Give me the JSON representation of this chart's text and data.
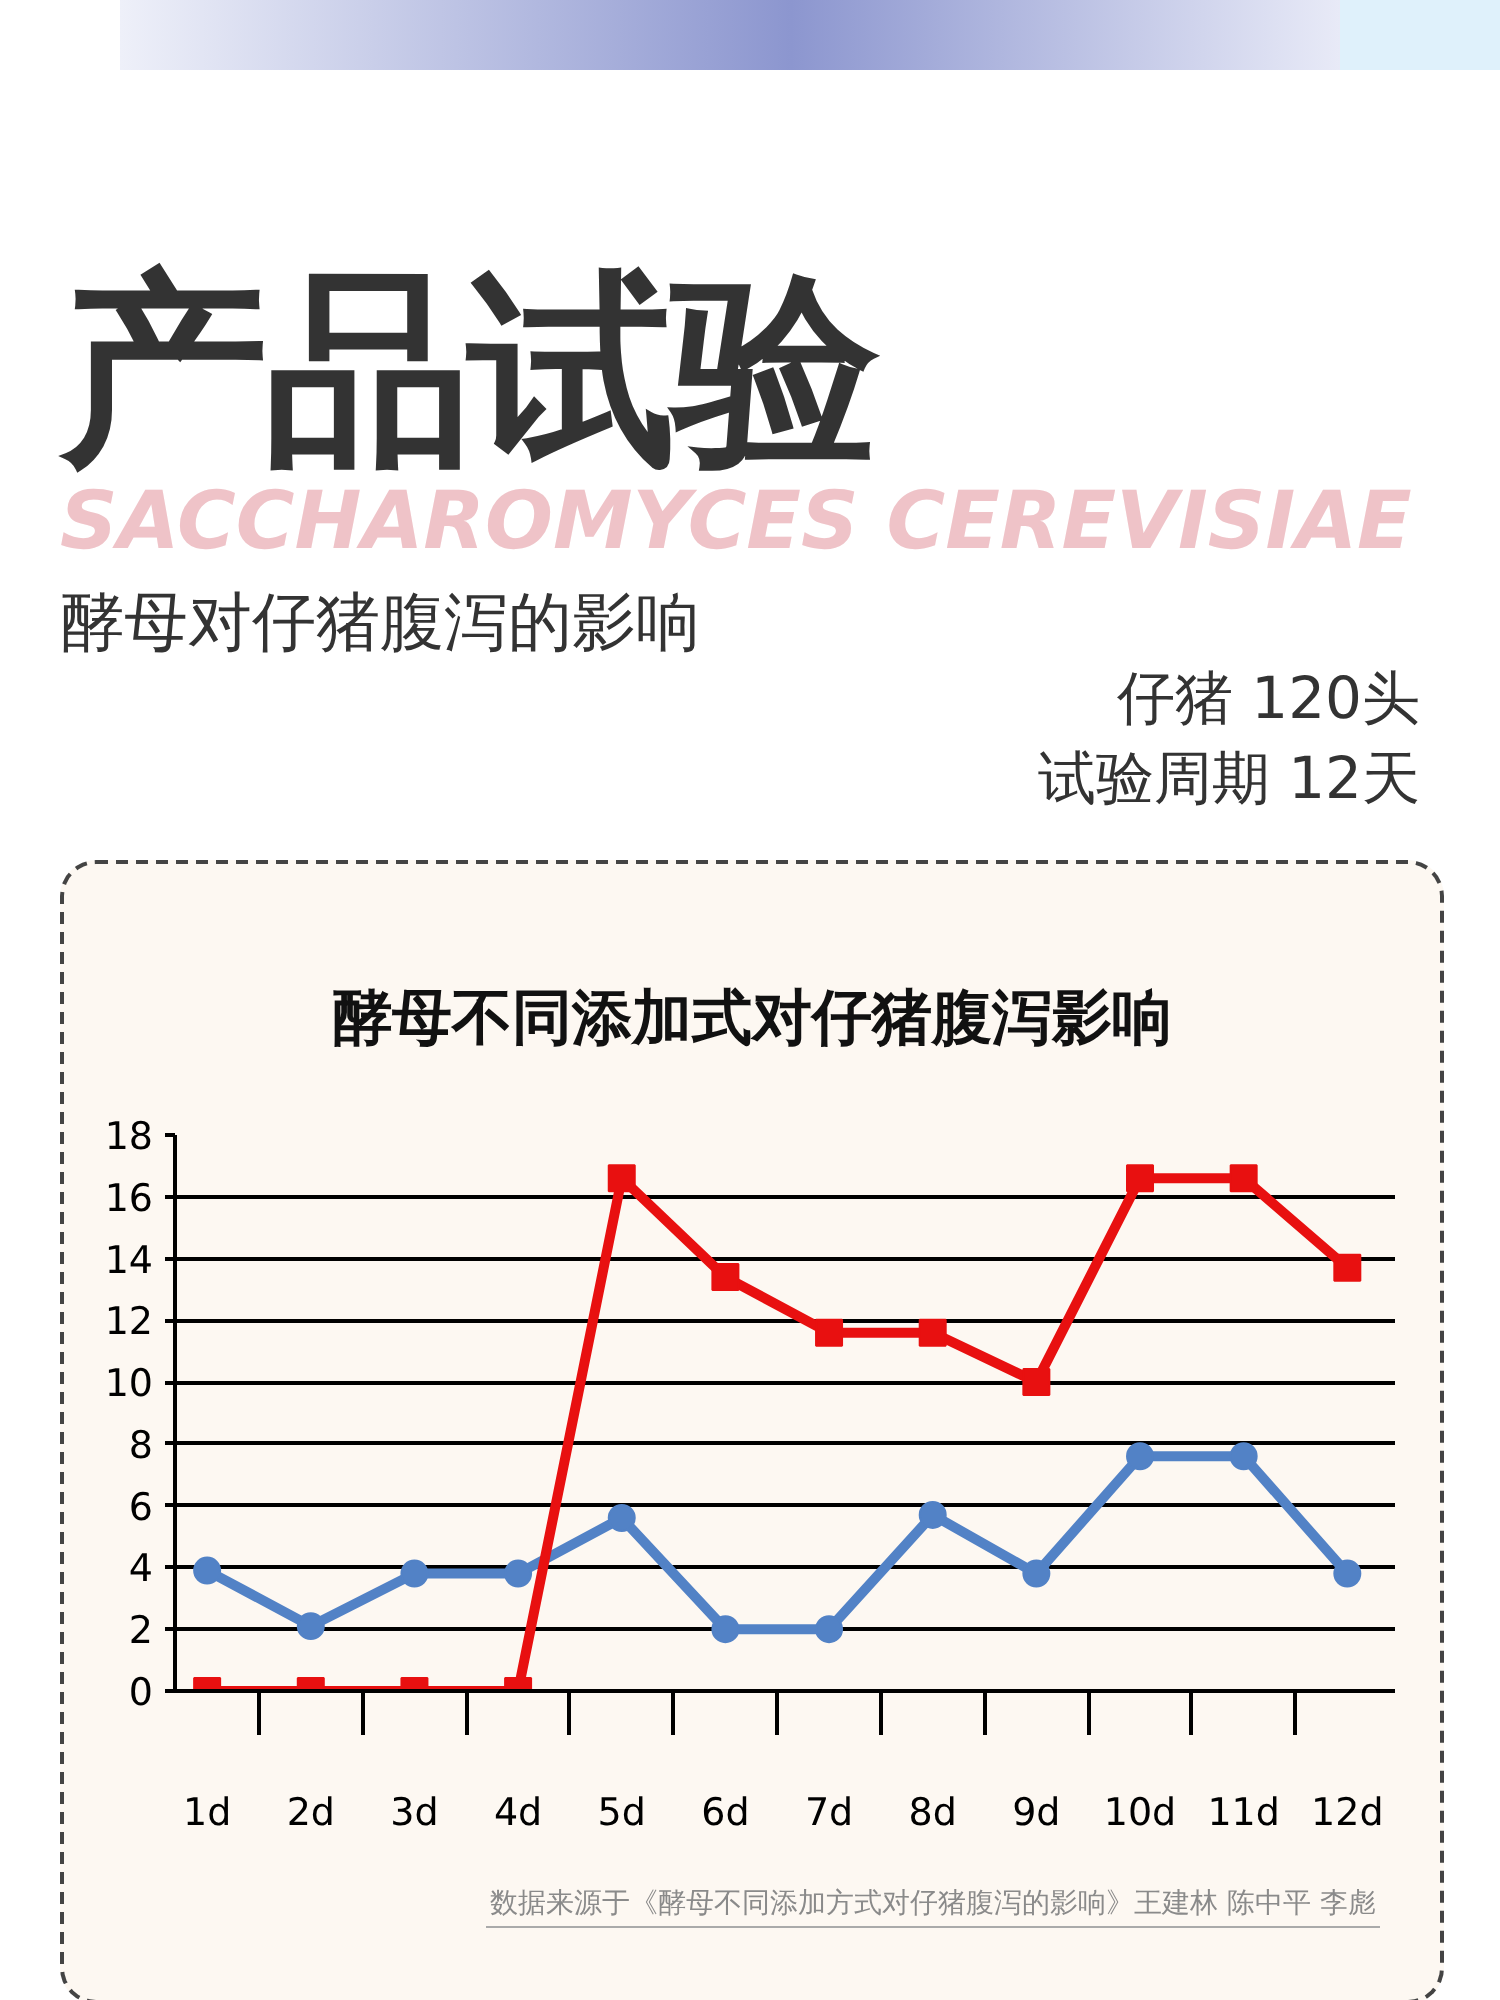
{
  "chart_data": {
    "type": "line",
    "title": "酵母不同添加式对仔猪腹泻影响",
    "subtitle": "酵母对仔猪腹泻的影响",
    "annotations": [
      "产品试验",
      "SACCHAROMYCES CEREVISIAE",
      "仔猪 120头",
      "试验周期 12天",
      "数据来源于《酵母不同添加方式对仔猪腹泻的影响》王建林 陈中平 李彪"
    ],
    "categories": [
      "1d",
      "2d",
      "3d",
      "4d",
      "5d",
      "6d",
      "7d",
      "8d",
      "9d",
      "10d",
      "11d",
      "12d"
    ],
    "series": [
      {
        "color": "#5282c6",
        "marker": "circle",
        "values": [
          3.9,
          2.1,
          3.8,
          3.8,
          5.6,
          2.0,
          2.0,
          5.7,
          3.8,
          7.6,
          7.6,
          3.8
        ]
      },
      {
        "color": "#e81010",
        "marker": "square",
        "values": [
          0,
          0,
          0,
          0,
          16.6,
          13.4,
          11.6,
          11.6,
          10.0,
          16.6,
          16.6,
          13.7
        ]
      }
    ],
    "ylim": [
      0,
      18
    ],
    "yticks": [
      0,
      2,
      4,
      6,
      8,
      10,
      12,
      14,
      16,
      18
    ],
    "grid": "y"
  }
}
